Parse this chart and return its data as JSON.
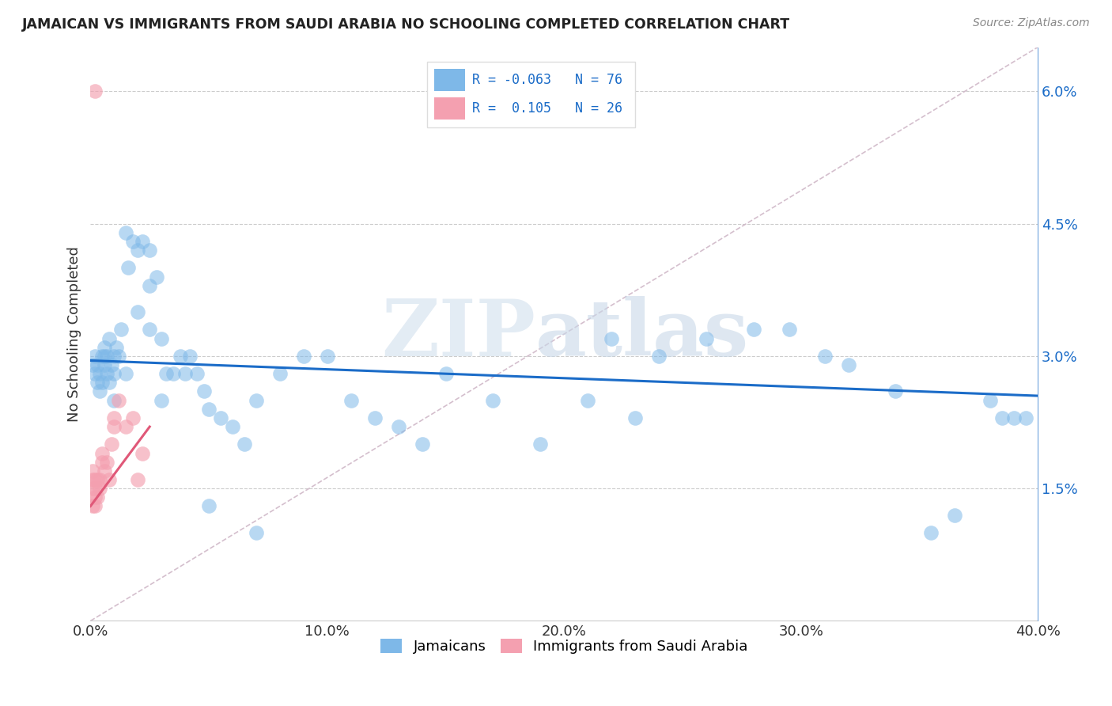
{
  "title": "JAMAICAN VS IMMIGRANTS FROM SAUDI ARABIA NO SCHOOLING COMPLETED CORRELATION CHART",
  "source": "Source: ZipAtlas.com",
  "ylabel": "No Schooling Completed",
  "xlim": [
    0.0,
    0.4
  ],
  "ylim": [
    0.0,
    0.065
  ],
  "xticks": [
    0.0,
    0.1,
    0.2,
    0.3,
    0.4
  ],
  "xtick_labels": [
    "0.0%",
    "10.0%",
    "20.0%",
    "30.0%",
    "40.0%"
  ],
  "yticks_right": [
    0.015,
    0.03,
    0.045,
    0.06
  ],
  "ytick_labels_right": [
    "1.5%",
    "3.0%",
    "4.5%",
    "6.0%"
  ],
  "blue_color": "#7EB8E8",
  "pink_color": "#F4A0B0",
  "blue_line_color": "#1B6CC8",
  "pink_line_color": "#E05878",
  "diag_color": "#D0B8C8",
  "legend_text_color": "#1B6CC8",
  "blue_x": [
    0.001,
    0.002,
    0.002,
    0.003,
    0.003,
    0.004,
    0.004,
    0.005,
    0.005,
    0.006,
    0.006,
    0.006,
    0.007,
    0.007,
    0.008,
    0.008,
    0.009,
    0.01,
    0.01,
    0.011,
    0.012,
    0.013,
    0.015,
    0.016,
    0.018,
    0.02,
    0.022,
    0.025,
    0.025,
    0.028,
    0.03,
    0.032,
    0.035,
    0.038,
    0.04,
    0.042,
    0.045,
    0.048,
    0.05,
    0.055,
    0.06,
    0.065,
    0.07,
    0.08,
    0.09,
    0.1,
    0.11,
    0.12,
    0.13,
    0.14,
    0.15,
    0.17,
    0.19,
    0.21,
    0.22,
    0.23,
    0.24,
    0.26,
    0.28,
    0.295,
    0.31,
    0.32,
    0.34,
    0.355,
    0.365,
    0.38,
    0.385,
    0.39,
    0.395,
    0.01,
    0.015,
    0.02,
    0.025,
    0.03,
    0.05,
    0.07
  ],
  "blue_y": [
    0.029,
    0.028,
    0.03,
    0.027,
    0.029,
    0.026,
    0.028,
    0.027,
    0.03,
    0.029,
    0.03,
    0.031,
    0.028,
    0.03,
    0.027,
    0.032,
    0.029,
    0.03,
    0.028,
    0.031,
    0.03,
    0.033,
    0.044,
    0.04,
    0.043,
    0.042,
    0.043,
    0.042,
    0.038,
    0.039,
    0.032,
    0.028,
    0.028,
    0.03,
    0.028,
    0.03,
    0.028,
    0.026,
    0.024,
    0.023,
    0.022,
    0.02,
    0.025,
    0.028,
    0.03,
    0.03,
    0.025,
    0.023,
    0.022,
    0.02,
    0.028,
    0.025,
    0.02,
    0.025,
    0.032,
    0.023,
    0.03,
    0.032,
    0.033,
    0.033,
    0.03,
    0.029,
    0.026,
    0.01,
    0.012,
    0.025,
    0.023,
    0.023,
    0.023,
    0.025,
    0.028,
    0.035,
    0.033,
    0.025,
    0.013,
    0.01
  ],
  "pink_x": [
    0.001,
    0.001,
    0.001,
    0.001,
    0.002,
    0.002,
    0.002,
    0.002,
    0.003,
    0.003,
    0.004,
    0.004,
    0.005,
    0.005,
    0.006,
    0.007,
    0.008,
    0.009,
    0.01,
    0.01,
    0.012,
    0.015,
    0.018,
    0.02,
    0.022,
    0.002
  ],
  "pink_y": [
    0.013,
    0.015,
    0.016,
    0.017,
    0.013,
    0.014,
    0.015,
    0.016,
    0.014,
    0.016,
    0.015,
    0.016,
    0.018,
    0.019,
    0.017,
    0.018,
    0.016,
    0.02,
    0.022,
    0.023,
    0.025,
    0.022,
    0.023,
    0.016,
    0.019,
    0.06
  ],
  "blue_trend_x0": 0.0,
  "blue_trend_y0": 0.0295,
  "blue_trend_x1": 0.4,
  "blue_trend_y1": 0.0255,
  "pink_trend_x0": 0.0,
  "pink_trend_y0": 0.013,
  "pink_trend_x1": 0.025,
  "pink_trend_y1": 0.022
}
